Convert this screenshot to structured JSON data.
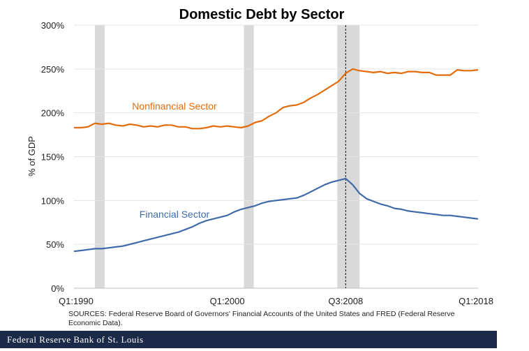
{
  "chart_data": {
    "type": "line",
    "title": "Domestic Debt by Sector",
    "ylabel": "% of GDP",
    "ylim": [
      0,
      300
    ],
    "yticks": [
      "0%",
      "50%",
      "100%",
      "150%",
      "200%",
      "250%",
      "300%"
    ],
    "xticks": [
      "Q1:1990",
      "Q1:2000",
      "Q3:2008",
      "Q1:2018"
    ],
    "grid": "horizontal",
    "recession_shading": [
      [
        1990.5,
        1991.2
      ],
      [
        2001.2,
        2001.9
      ],
      [
        2007.9,
        2009.5
      ]
    ],
    "event_line": "Q3:2008",
    "series": [
      {
        "name": "Nonfinancial Sector",
        "color": "#e36c0a",
        "x": [
          1989.0,
          1989.5,
          1990.0,
          1990.5,
          1991.0,
          1991.5,
          1992.0,
          1992.5,
          1993.0,
          1993.5,
          1994.0,
          1994.5,
          1995.0,
          1995.5,
          1996.0,
          1996.5,
          1997.0,
          1997.5,
          1998.0,
          1998.5,
          1999.0,
          1999.5,
          2000.0,
          2000.5,
          2001.0,
          2001.5,
          2002.0,
          2002.5,
          2003.0,
          2003.5,
          2004.0,
          2004.5,
          2005.0,
          2005.5,
          2006.0,
          2006.5,
          2007.0,
          2007.5,
          2008.0,
          2008.5,
          2009.0,
          2009.5,
          2010.0,
          2010.5,
          2011.0,
          2011.5,
          2012.0,
          2012.5,
          2013.0,
          2013.5,
          2014.0,
          2014.5,
          2015.0,
          2015.5,
          2016.0,
          2016.5,
          2017.0,
          2017.5,
          2018.0
        ],
        "values": [
          183,
          183,
          184,
          188,
          187,
          188,
          186,
          185,
          187,
          186,
          184,
          185,
          184,
          186,
          186,
          184,
          184,
          182,
          182,
          183,
          185,
          184,
          185,
          184,
          183,
          185,
          189,
          191,
          196,
          200,
          206,
          208,
          209,
          212,
          217,
          221,
          226,
          231,
          236,
          245,
          250,
          248,
          247,
          246,
          247,
          245,
          246,
          245,
          247,
          247,
          246,
          246,
          243,
          243,
          243,
          249,
          248,
          248,
          249
        ]
      },
      {
        "name": "Financial Sector",
        "color": "#4069a8",
        "x": [
          1989.0,
          1989.5,
          1990.0,
          1990.5,
          1991.0,
          1991.5,
          1992.0,
          1992.5,
          1993.0,
          1993.5,
          1994.0,
          1994.5,
          1995.0,
          1995.5,
          1996.0,
          1996.5,
          1997.0,
          1997.5,
          1998.0,
          1998.5,
          1999.0,
          1999.5,
          2000.0,
          2000.5,
          2001.0,
          2001.5,
          2002.0,
          2002.5,
          2003.0,
          2003.5,
          2004.0,
          2004.5,
          2005.0,
          2005.5,
          2006.0,
          2006.5,
          2007.0,
          2007.5,
          2008.0,
          2008.5,
          2009.0,
          2009.5,
          2010.0,
          2010.5,
          2011.0,
          2011.5,
          2012.0,
          2012.5,
          2013.0,
          2013.5,
          2014.0,
          2014.5,
          2015.0,
          2015.5,
          2016.0,
          2016.5,
          2017.0,
          2017.5,
          2018.0
        ],
        "values": [
          42,
          43,
          44,
          45,
          45,
          46,
          47,
          48,
          50,
          52,
          54,
          56,
          58,
          60,
          62,
          64,
          67,
          70,
          74,
          77,
          79,
          81,
          83,
          87,
          90,
          92,
          94,
          97,
          99,
          100,
          101,
          102,
          103,
          106,
          110,
          114,
          118,
          121,
          123,
          125,
          118,
          108,
          102,
          99,
          96,
          94,
          91,
          90,
          88,
          87,
          86,
          85,
          84,
          83,
          83,
          82,
          81,
          80,
          79
        ]
      }
    ]
  },
  "sources": "SOURCES: Federal Reserve Board of Governors' Financial Accounts of the United States and FRED (Federal Reserve Economic Data).",
  "footer": "Federal Reserve Bank of St. Louis"
}
